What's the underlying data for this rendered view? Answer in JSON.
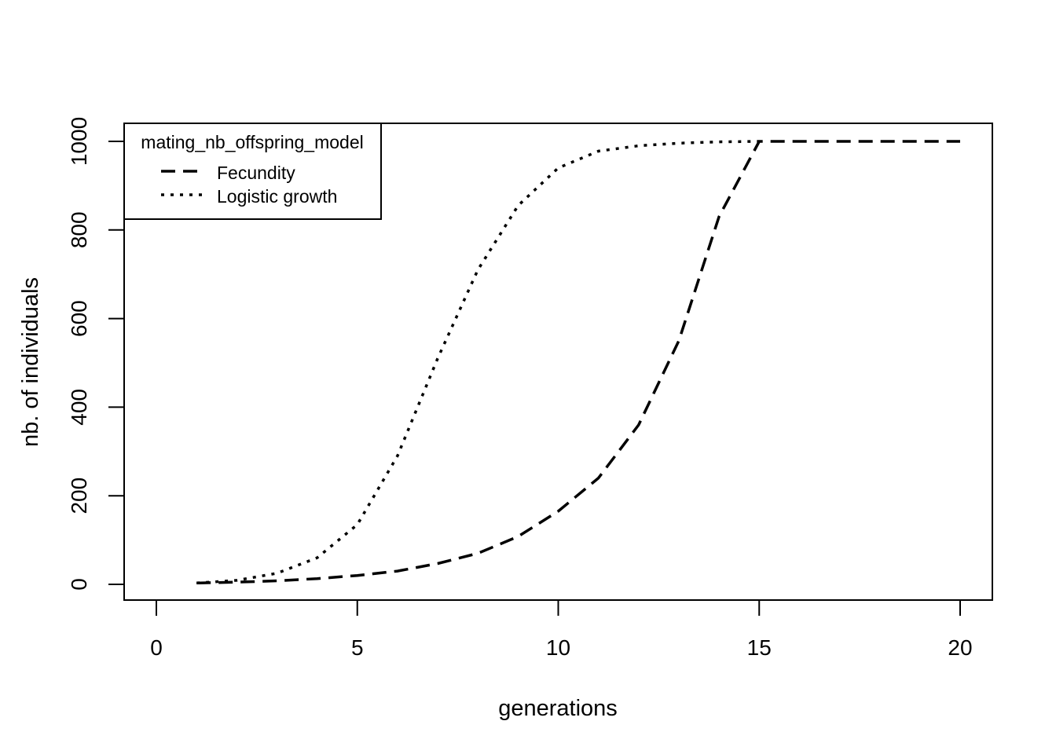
{
  "chart_data": {
    "type": "line",
    "title": "",
    "xlabel": "generations",
    "ylabel": "nb. of individuals",
    "xlim": [
      0,
      20
    ],
    "ylim": [
      0,
      1000
    ],
    "xticks": [
      0,
      5,
      10,
      15,
      20
    ],
    "yticks": [
      0,
      200,
      400,
      600,
      800,
      1000
    ],
    "grid": false,
    "legend": {
      "title": "mating_nb_offspring_model",
      "placement": "top-left"
    },
    "series": [
      {
        "name": "Fecundity",
        "line_style": "dashed",
        "color": "#000000",
        "x": [
          1,
          2,
          3,
          4,
          5,
          6,
          7,
          8,
          9,
          10,
          11,
          12,
          13,
          14,
          15,
          16,
          17,
          18,
          19,
          20
        ],
        "y": [
          3,
          5,
          8,
          13,
          20,
          30,
          47,
          70,
          108,
          165,
          240,
          360,
          550,
          830,
          1000,
          1000,
          1000,
          1000,
          1000,
          1000
        ]
      },
      {
        "name": "Logistic growth",
        "line_style": "dotted",
        "color": "#000000",
        "x": [
          1,
          2,
          3,
          4,
          5,
          6,
          7,
          8,
          9,
          10,
          11,
          12,
          13,
          14,
          15
        ],
        "y": [
          3,
          9,
          25,
          60,
          135,
          290,
          510,
          710,
          855,
          940,
          978,
          990,
          996,
          999,
          1000
        ]
      }
    ]
  }
}
